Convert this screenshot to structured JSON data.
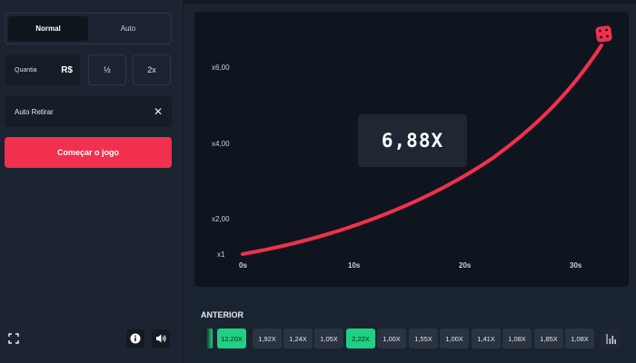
{
  "mode_tabs": [
    {
      "label": "Normal",
      "active": true
    },
    {
      "label": "Auto",
      "active": false
    }
  ],
  "bet": {
    "amount_label": "Quantia",
    "currency": "R$",
    "half_label": "½",
    "double_label": "2x"
  },
  "auto_withdraw": {
    "label": "Auto Retirar",
    "close_symbol": "✕"
  },
  "start_button": {
    "label": "Começar o jogo",
    "color": "#f1304f"
  },
  "chart": {
    "y_ticks": [
      "x6,00",
      "x4,00",
      "x2,00",
      "x1"
    ],
    "x_ticks": [
      "0s",
      "10s",
      "20s",
      "30s"
    ],
    "line_color": "#f1304f"
  },
  "current_multiplier": "6,88X",
  "history": {
    "title": "ANTERIOR",
    "items": [
      {
        "value": "12,20X",
        "highlight": true
      },
      {
        "value": "1,92X",
        "highlight": false
      },
      {
        "value": "1,24X",
        "highlight": false
      },
      {
        "value": "1,05X",
        "highlight": false
      },
      {
        "value": "2,22X",
        "highlight": true
      },
      {
        "value": "1,00X",
        "highlight": false
      },
      {
        "value": "1,55X",
        "highlight": false
      },
      {
        "value": "1,00X",
        "highlight": false
      },
      {
        "value": "1,41X",
        "highlight": false
      },
      {
        "value": "1,08X",
        "highlight": false
      },
      {
        "value": "1,85X",
        "highlight": false
      },
      {
        "value": "1,08X",
        "highlight": false
      }
    ],
    "highlight_color": "#1fcf84"
  },
  "icons": {
    "fullscreen": "fullscreen-icon",
    "info": "info-icon",
    "sound": "speaker-icon",
    "stats": "bar-chart-icon",
    "rocket": "dice-icon"
  }
}
